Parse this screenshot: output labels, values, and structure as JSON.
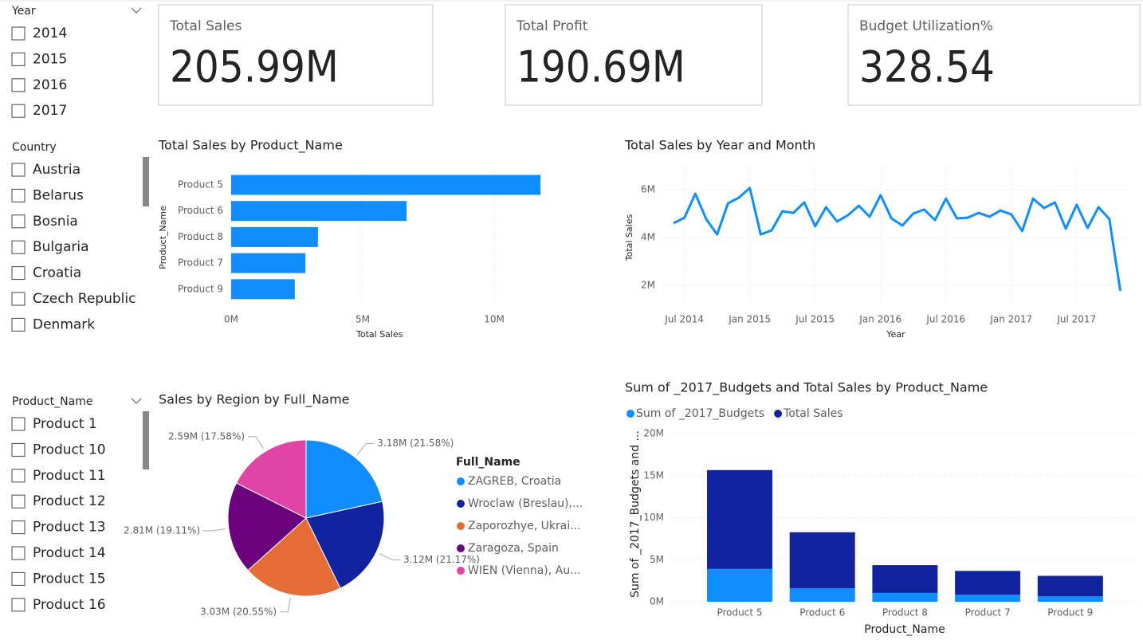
{
  "slicers": [
    {
      "title": "Year",
      "items": [
        "2014",
        "2015",
        "2016",
        "2017"
      ]
    },
    {
      "title": "Country",
      "items": [
        "Austria",
        "Belarus",
        "Bosnia",
        "Bulgaria",
        "Croatia",
        "Czech Republic",
        "Denmark"
      ]
    },
    {
      "title": "Product_Name",
      "items": [
        "Product 1",
        "Product 10",
        "Product 11",
        "Product 12",
        "Product 13",
        "Product 14",
        "Product 15",
        "Product 16"
      ]
    }
  ],
  "cards": [
    {
      "label": "Total Sales",
      "value": "205.99M"
    },
    {
      "label": "Total Profit",
      "value": "190.69M"
    },
    {
      "label": "Budget Utilization%",
      "value": "328.54"
    }
  ],
  "chart_data": [
    {
      "type": "bar",
      "orientation": "horizontal",
      "title": "Total Sales by Product_Name",
      "categories": [
        "Product 5",
        "Product 6",
        "Product 8",
        "Product 7",
        "Product 9"
      ],
      "values": [
        11760000,
        6670000,
        3300000,
        2820000,
        2420000
      ],
      "color": "#118dff",
      "xlim": [
        0,
        12500000
      ],
      "xticks": [
        {
          "value": 0,
          "label": "0M"
        },
        {
          "value": 5000000,
          "label": "5M"
        },
        {
          "value": 10000000,
          "label": "10M"
        }
      ],
      "x_label": "Total Sales",
      "y_label": "Product_Name",
      "grid": true
    },
    {
      "type": "line",
      "title": "Total Sales by Year and Month",
      "x": [
        "2014-06",
        "2014-07",
        "2014-08",
        "2014-09",
        "2014-10",
        "2014-11",
        "2014-12",
        "2015-01",
        "2015-02",
        "2015-03",
        "2015-04",
        "2015-05",
        "2015-06",
        "2015-07",
        "2015-08",
        "2015-09",
        "2015-10",
        "2015-11",
        "2015-12",
        "2016-01",
        "2016-02",
        "2016-03",
        "2016-04",
        "2016-05",
        "2016-06",
        "2016-07",
        "2016-08",
        "2016-09",
        "2016-10",
        "2016-11",
        "2016-12",
        "2017-01",
        "2017-02",
        "2017-03",
        "2017-04",
        "2017-05",
        "2017-06",
        "2017-07",
        "2017-08",
        "2017-09",
        "2017-10",
        "2017-11"
      ],
      "series": [
        {
          "name": "Total Sales",
          "color": "#118dff",
          "values": [
            4600000,
            4830000,
            5830000,
            4770000,
            4130000,
            5430000,
            5670000,
            6070000,
            4130000,
            4300000,
            5100000,
            5030000,
            5470000,
            4470000,
            5270000,
            4670000,
            4930000,
            5330000,
            4870000,
            5770000,
            4800000,
            4500000,
            5000000,
            5170000,
            4730000,
            5630000,
            4800000,
            4830000,
            5030000,
            4870000,
            5130000,
            4970000,
            4270000,
            5630000,
            5230000,
            5470000,
            4370000,
            5370000,
            4400000,
            5270000,
            4770000,
            1770000
          ]
        }
      ],
      "xticks": [
        {
          "value": "2014-07",
          "label": "Jul 2014"
        },
        {
          "value": "2015-01",
          "label": "Jan 2015"
        },
        {
          "value": "2015-07",
          "label": "Jul 2015"
        },
        {
          "value": "2016-01",
          "label": "Jan 2016"
        },
        {
          "value": "2016-07",
          "label": "Jul 2016"
        },
        {
          "value": "2017-01",
          "label": "Jan 2017"
        },
        {
          "value": "2017-07",
          "label": "Jul 2017"
        }
      ],
      "ylim": [
        1200000,
        6900000
      ],
      "yticks": [
        {
          "value": 2000000,
          "label": "2M"
        },
        {
          "value": 4000000,
          "label": "4M"
        },
        {
          "value": 6000000,
          "label": "6M"
        }
      ],
      "x_label": "Year",
      "y_label": "Total Sales",
      "grid": true
    },
    {
      "type": "pie",
      "title": "Sales by Region by Full_Name",
      "legend_title": "Full_Name",
      "categories": [
        "ZAGREB, Croatia",
        "Wroclaw (Breslau),...",
        "Zaporozhye, Ukrai...",
        "Zaragoza, Spain",
        "WIEN (Vienna), Au..."
      ],
      "values": [
        3180000,
        3120000,
        3030000,
        2810000,
        2590000
      ],
      "value_labels": [
        "3.18M (21.58%)",
        "3.12M (21.17%)",
        "3.03M (20.55%)",
        "2.81M (19.11%)",
        "2.59M (17.58%)"
      ],
      "colors": [
        "#118dff",
        "#12239e",
        "#e66c37",
        "#6b007b",
        "#e044a7"
      ]
    },
    {
      "type": "stacked_bar",
      "title": "Sum of _2017_Budgets and Total Sales by Product_Name",
      "categories": [
        "Product 5",
        "Product 6",
        "Product 8",
        "Product 7",
        "Product 9"
      ],
      "series": [
        {
          "name": "Sum of _2017_Budgets",
          "color": "#118dff",
          "values": [
            3900000,
            1600000,
            1050000,
            850000,
            660000
          ]
        },
        {
          "name": "Total Sales",
          "color": "#12239e",
          "values": [
            11760000,
            6670000,
            3300000,
            2820000,
            2420000
          ]
        }
      ],
      "ylim": [
        0,
        20000000
      ],
      "yticks": [
        {
          "value": 0,
          "label": "0M"
        },
        {
          "value": 5000000,
          "label": "5M"
        },
        {
          "value": 10000000,
          "label": "10M"
        },
        {
          "value": 15000000,
          "label": "15M"
        },
        {
          "value": 20000000,
          "label": "20M"
        }
      ],
      "x_label": "Product_Name",
      "y_label": "Sum of _2017_Budgets and ...",
      "grid": true
    }
  ]
}
